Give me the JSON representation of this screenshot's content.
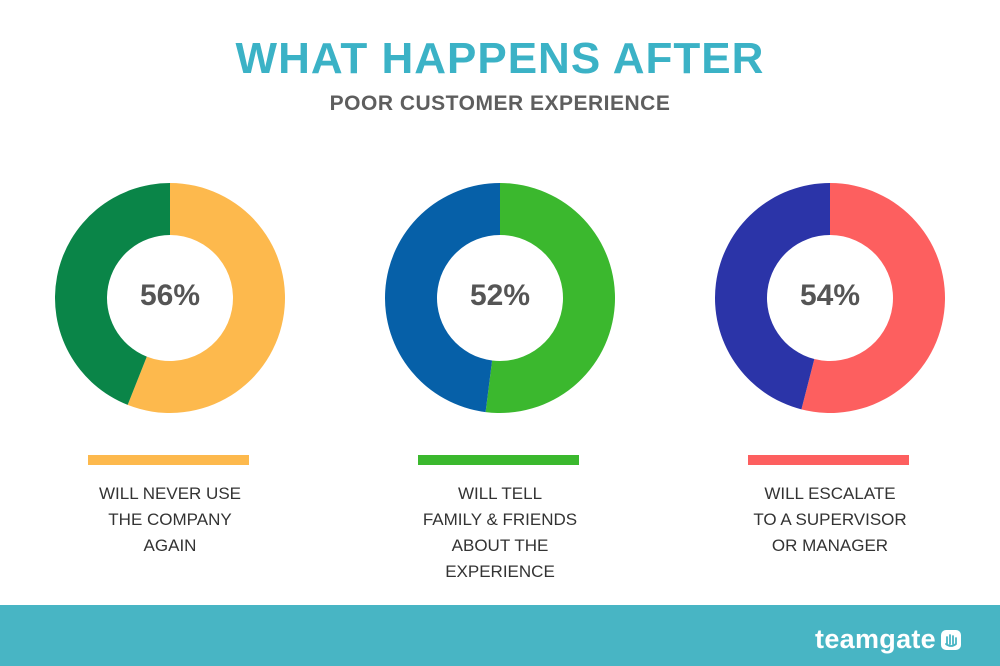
{
  "header": {
    "title": "WHAT HAPPENS AFTER",
    "subtitle": "POOR CUSTOMER EXPERIENCE"
  },
  "colors": {
    "title": "#3bb2c6",
    "footer": "#48b5c4"
  },
  "chart_data": [
    {
      "type": "pie",
      "variant": "donut",
      "center_label": "56%",
      "value": 56,
      "slices": [
        {
          "value": 56,
          "color": "#fdb94d"
        },
        {
          "value": 44,
          "color": "#0a8548"
        }
      ],
      "bar_color": "#fdb94d",
      "label_lines": [
        "WILL NEVER USE",
        "THE COMPANY",
        "AGAIN"
      ]
    },
    {
      "type": "pie",
      "variant": "donut",
      "center_label": "52%",
      "value": 52,
      "slices": [
        {
          "value": 52,
          "color": "#3bb82e"
        },
        {
          "value": 48,
          "color": "#0660a8"
        }
      ],
      "bar_color": "#3bb82e",
      "label_lines": [
        "WILL TELL",
        "FAMILY & FRIENDS",
        "ABOUT THE",
        "EXPERIENCE"
      ]
    },
    {
      "type": "pie",
      "variant": "donut",
      "center_label": "54%",
      "value": 54,
      "slices": [
        {
          "value": 54,
          "color": "#fd5f5f"
        },
        {
          "value": 46,
          "color": "#2b34a8"
        }
      ],
      "bar_color": "#fd5f5f",
      "label_lines": [
        "WILL ESCALATE",
        "TO A SUPERVISOR",
        "OR MANAGER"
      ]
    }
  ],
  "footer": {
    "brand": "teamgate",
    "logo_icon": "hand-icon"
  }
}
